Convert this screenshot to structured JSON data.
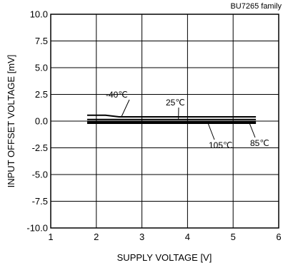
{
  "chart_data": {
    "type": "line",
    "title": "BU7265 family",
    "xlabel": "SUPPLY VOLTAGE [V]",
    "ylabel": "INPUT OFFSET VOLTAGE [mV]",
    "xlim": [
      1,
      6
    ],
    "ylim": [
      -10.0,
      10.0
    ],
    "grid": true,
    "x_ticks": [
      1,
      2,
      3,
      4,
      5,
      6
    ],
    "x_tick_labels": [
      "1",
      "2",
      "3",
      "4",
      "5",
      "6"
    ],
    "y_ticks": [
      10,
      7.5,
      5,
      2.5,
      0,
      -2.5,
      -5,
      -7.5,
      -10
    ],
    "y_tick_labels": [
      "10.0",
      "7.5",
      "5.0",
      "2.5",
      "0.0",
      "-2.5",
      "-5.0",
      "-7.5",
      "-10.0"
    ],
    "series": [
      {
        "name": "-40℃",
        "x": [
          1.8,
          2.2,
          2.4,
          2.5,
          5.5
        ],
        "y": [
          0.55,
          0.55,
          0.45,
          0.4,
          0.4
        ]
      },
      {
        "name": "25℃",
        "x": [
          1.8,
          5.5
        ],
        "y": [
          0.15,
          0.15
        ]
      },
      {
        "name": "85℃",
        "x": [
          1.8,
          5.5
        ],
        "y": [
          -0.1,
          -0.1
        ]
      },
      {
        "name": "105℃",
        "x": [
          1.8,
          5.5
        ],
        "y": [
          -0.2,
          -0.2
        ]
      }
    ],
    "annotations": [
      {
        "text": "-40℃",
        "series": "-40℃"
      },
      {
        "text": "25℃",
        "series": "25℃"
      },
      {
        "text": "105℃",
        "series": "105℃"
      },
      {
        "text": "85℃",
        "series": "85℃"
      }
    ]
  }
}
